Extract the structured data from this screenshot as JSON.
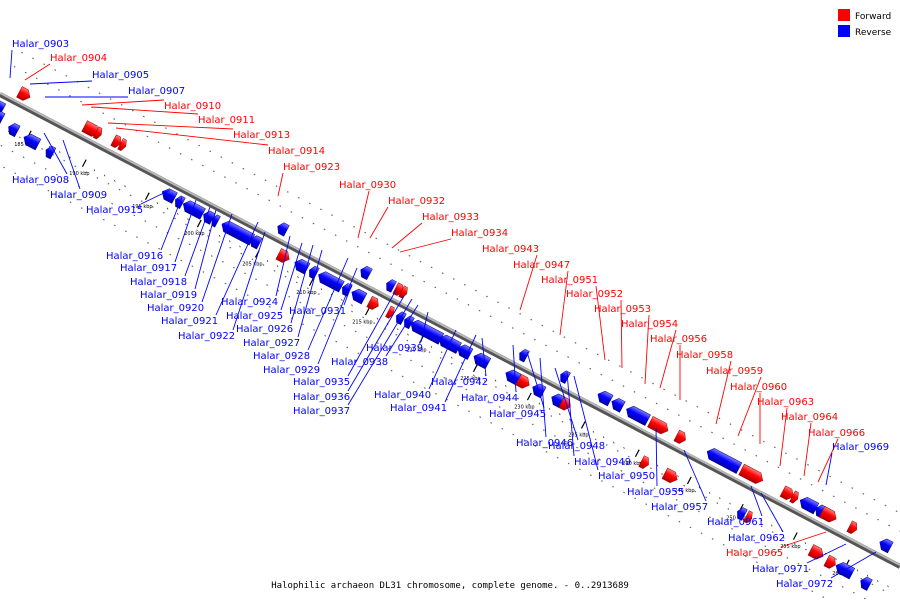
{
  "caption": "Halophilic archaeon DL31 chromosome, complete genome. - 0..2913689",
  "legend": [
    {
      "label": "Forward",
      "color": "#ff0000"
    },
    {
      "label": "Reverse",
      "color": "#0000ff"
    }
  ],
  "colors": {
    "forward": "#ff0000",
    "reverse": "#0000ff",
    "backbone": "#808080"
  },
  "scale_labels": [
    "185 kbp",
    "190 kbp",
    "195 kbp",
    "200 kbp",
    "205 kbp",
    "210 kbp",
    "215 kbp",
    "220 kbp",
    "225 kbp",
    "230 kbp",
    "235 kbp",
    "240 kbp",
    "245 kbp",
    "250 kbp",
    "255 kbp",
    "260 kbp"
  ],
  "genes": [
    {
      "id": "Halar_0903",
      "strand": "reverse"
    },
    {
      "id": "Halar_0904",
      "strand": "forward"
    },
    {
      "id": "Halar_0905",
      "strand": "reverse"
    },
    {
      "id": "Halar_0907",
      "strand": "reverse"
    },
    {
      "id": "Halar_0908",
      "strand": "reverse"
    },
    {
      "id": "Halar_0909",
      "strand": "reverse"
    },
    {
      "id": "Halar_0910",
      "strand": "forward"
    },
    {
      "id": "Halar_0911",
      "strand": "forward"
    },
    {
      "id": "Halar_0913",
      "strand": "forward"
    },
    {
      "id": "Halar_0914",
      "strand": "forward"
    },
    {
      "id": "Halar_0915",
      "strand": "reverse"
    },
    {
      "id": "Halar_0916",
      "strand": "reverse"
    },
    {
      "id": "Halar_0917",
      "strand": "reverse"
    },
    {
      "id": "Halar_0918",
      "strand": "reverse"
    },
    {
      "id": "Halar_0919",
      "strand": "reverse"
    },
    {
      "id": "Halar_0920",
      "strand": "reverse"
    },
    {
      "id": "Halar_0921",
      "strand": "reverse"
    },
    {
      "id": "Halar_0922",
      "strand": "reverse"
    },
    {
      "id": "Halar_0923",
      "strand": "forward"
    },
    {
      "id": "Halar_0924",
      "strand": "reverse"
    },
    {
      "id": "Halar_0925",
      "strand": "reverse"
    },
    {
      "id": "Halar_0926",
      "strand": "reverse"
    },
    {
      "id": "Halar_0927",
      "strand": "reverse"
    },
    {
      "id": "Halar_0928",
      "strand": "reverse"
    },
    {
      "id": "Halar_0929",
      "strand": "reverse"
    },
    {
      "id": "Halar_0930",
      "strand": "forward"
    },
    {
      "id": "Halar_0931",
      "strand": "reverse"
    },
    {
      "id": "Halar_0932",
      "strand": "forward"
    },
    {
      "id": "Halar_0933",
      "strand": "forward"
    },
    {
      "id": "Halar_0934",
      "strand": "forward"
    },
    {
      "id": "Halar_0935",
      "strand": "reverse"
    },
    {
      "id": "Halar_0936",
      "strand": "reverse"
    },
    {
      "id": "Halar_0937",
      "strand": "reverse"
    },
    {
      "id": "Halar_0938",
      "strand": "reverse"
    },
    {
      "id": "Halar_0939",
      "strand": "reverse"
    },
    {
      "id": "Halar_0940",
      "strand": "reverse"
    },
    {
      "id": "Halar_0941",
      "strand": "reverse"
    },
    {
      "id": "Halar_0942",
      "strand": "reverse"
    },
    {
      "id": "Halar_0943",
      "strand": "forward"
    },
    {
      "id": "Halar_0944",
      "strand": "reverse"
    },
    {
      "id": "Halar_0945",
      "strand": "reverse"
    },
    {
      "id": "Halar_0946",
      "strand": "reverse"
    },
    {
      "id": "Halar_0947",
      "strand": "forward"
    },
    {
      "id": "Halar_0948",
      "strand": "reverse"
    },
    {
      "id": "Halar_0949",
      "strand": "reverse"
    },
    {
      "id": "Halar_0950",
      "strand": "reverse"
    },
    {
      "id": "Halar_0951",
      "strand": "forward"
    },
    {
      "id": "Halar_0952",
      "strand": "forward"
    },
    {
      "id": "Halar_0953",
      "strand": "forward"
    },
    {
      "id": "Halar_0954",
      "strand": "forward"
    },
    {
      "id": "Halar_0955",
      "strand": "reverse"
    },
    {
      "id": "Halar_0956",
      "strand": "forward"
    },
    {
      "id": "Halar_0957",
      "strand": "reverse"
    },
    {
      "id": "Halar_0958",
      "strand": "forward"
    },
    {
      "id": "Halar_0959",
      "strand": "forward"
    },
    {
      "id": "Halar_0960",
      "strand": "forward"
    },
    {
      "id": "Halar_0961",
      "strand": "reverse"
    },
    {
      "id": "Halar_0962",
      "strand": "reverse"
    },
    {
      "id": "Halar_0963",
      "strand": "forward"
    },
    {
      "id": "Halar_0964",
      "strand": "forward"
    },
    {
      "id": "Halar_0965",
      "strand": "forward"
    },
    {
      "id": "Halar_0966",
      "strand": "forward"
    },
    {
      "id": "Halar_0969",
      "strand": "reverse"
    },
    {
      "id": "Halar_0971",
      "strand": "reverse"
    },
    {
      "id": "Halar_0972",
      "strand": "reverse"
    }
  ]
}
